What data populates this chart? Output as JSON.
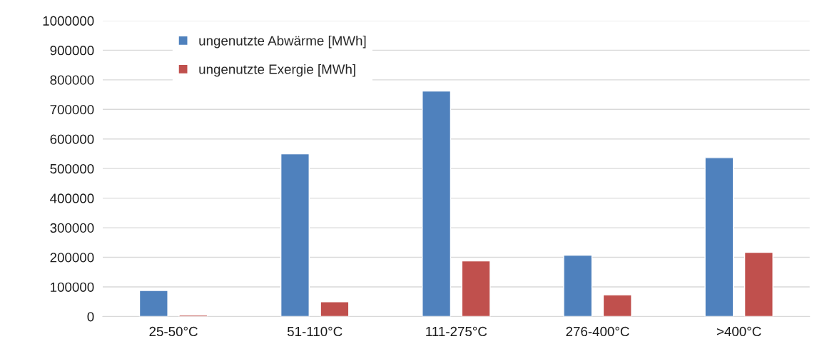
{
  "chart_data": {
    "type": "bar",
    "categories": [
      "25-50°C",
      "51-110°C",
      "111-275°C",
      "276-400°C",
      ">400°C"
    ],
    "series": [
      {
        "name": "ungenutzte Abwärme [MWh]",
        "color": "#4f81bd",
        "values": [
          88000,
          550000,
          762000,
          207000,
          537000
        ]
      },
      {
        "name": "ungenutzte Exergie [MWh]",
        "color": "#c0504d",
        "values": [
          5000,
          50000,
          188000,
          73000,
          217000
        ]
      }
    ],
    "ylim": [
      0,
      1000000
    ],
    "yticks": [
      0,
      100000,
      200000,
      300000,
      400000,
      500000,
      600000,
      700000,
      800000,
      900000,
      1000000
    ],
    "grid": "y",
    "legend": "top left"
  }
}
